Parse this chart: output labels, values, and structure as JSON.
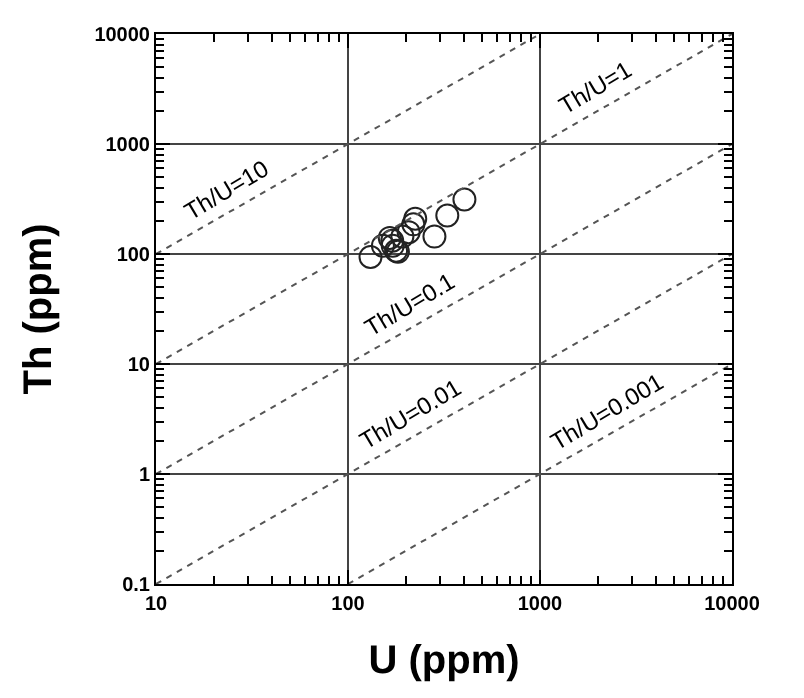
{
  "chart_data": {
    "type": "scatter",
    "xlabel": "U (ppm)",
    "ylabel": "Th (ppm)",
    "log": "xy",
    "grid": true,
    "legend": false,
    "xlim": [
      10,
      10000
    ],
    "ylim": [
      0.1,
      10000
    ],
    "xticks": [
      10,
      100,
      1000,
      10000
    ],
    "yticks": [
      0.1,
      1,
      10,
      100,
      1000,
      10000
    ],
    "series": [
      {
        "color": "#222222",
        "marker": "circle",
        "x": [
          131,
          152,
          160,
          165,
          171,
          178,
          182,
          170,
          192,
          207,
          219,
          224,
          282,
          329,
          404
        ],
        "values": [
          94,
          119,
          null,
          140,
          119,
          107,
          105,
          132,
          144,
          158,
          186,
          209,
          144,
          224,
          313
        ]
      },
      {
        "type": "line",
        "name": "Th/U=10",
        "color": "#555555",
        "line_style": "dotted",
        "x": [
          10,
          1000
        ],
        "values": [
          100,
          10000
        ]
      },
      {
        "type": "line",
        "name": "Th/U=1",
        "color": "#555555",
        "line_style": "dotted",
        "x": [
          10,
          10000
        ],
        "values": [
          10,
          10000
        ]
      },
      {
        "type": "line",
        "name": "Th/U=0.1",
        "color": "#555555",
        "line_style": "dotted",
        "x": [
          10,
          10000
        ],
        "values": [
          1,
          1000
        ]
      },
      {
        "type": "line",
        "name": "Th/U=0.01",
        "color": "#555555",
        "line_style": "dotted",
        "x": [
          10,
          10000
        ],
        "values": [
          0.1,
          100
        ]
      },
      {
        "type": "line",
        "name": "Th/U=0.001",
        "color": "#555555",
        "line_style": "dotted",
        "x": [
          100,
          10000
        ],
        "values": [
          0.1,
          10
        ]
      }
    ]
  }
}
